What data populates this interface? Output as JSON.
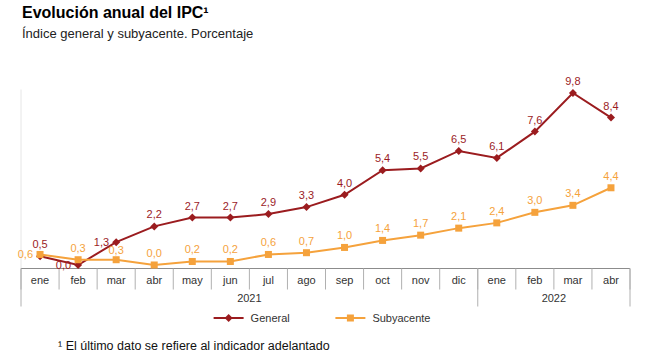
{
  "chart_data": {
    "type": "line",
    "title": "Evolución anual del IPC¹",
    "subtitle": "Índice general y subyacente. Porcentaje",
    "footnote": "¹ El último dato se refiere al indicador adelantado",
    "categories": [
      "ene",
      "feb",
      "mar",
      "abr",
      "may",
      "jun",
      "jul",
      "ago",
      "sep",
      "oct",
      "nov",
      "dic",
      "ene",
      "feb",
      "mar",
      "abr"
    ],
    "category_groups": [
      {
        "label": "2021",
        "count": 12
      },
      {
        "label": "2022",
        "count": 4
      }
    ],
    "series": [
      {
        "name": "General",
        "color": "#9b1c1f",
        "marker": "diamond",
        "line_style": "solid",
        "values": [
          0.5,
          0.0,
          1.3,
          2.2,
          2.7,
          2.7,
          2.9,
          3.3,
          4.0,
          5.4,
          5.5,
          6.5,
          6.1,
          7.6,
          9.8,
          8.4
        ],
        "value_labels": [
          "0,5",
          "0,0",
          "1,3",
          "2,2",
          "2,7",
          "2,7",
          "2,9",
          "3,3",
          "4,0",
          "5,4",
          "5,5",
          "6,5",
          "6,1",
          "7,6",
          "9,8",
          "8,4"
        ]
      },
      {
        "name": "Subyacente",
        "color": "#f5a23c",
        "marker": "square",
        "line_style": "solid",
        "values": [
          0.6,
          0.3,
          0.3,
          0.0,
          0.2,
          0.2,
          0.6,
          0.7,
          1.0,
          1.4,
          1.7,
          2.1,
          2.4,
          3.0,
          3.4,
          4.4
        ],
        "value_labels": [
          "0,6",
          "0,3",
          "0,3",
          "0,0",
          "0,2",
          "0,2",
          "0,6",
          "0,7",
          "1,0",
          "1,4",
          "1,7",
          "2,1",
          "2,4",
          "3,0",
          "3,4",
          "4,4"
        ]
      }
    ],
    "ylim": [
      -0.2,
      10
    ],
    "yticks": [],
    "grid": false,
    "legend": "bottom",
    "data_labels": true,
    "tick_labels": "x"
  }
}
